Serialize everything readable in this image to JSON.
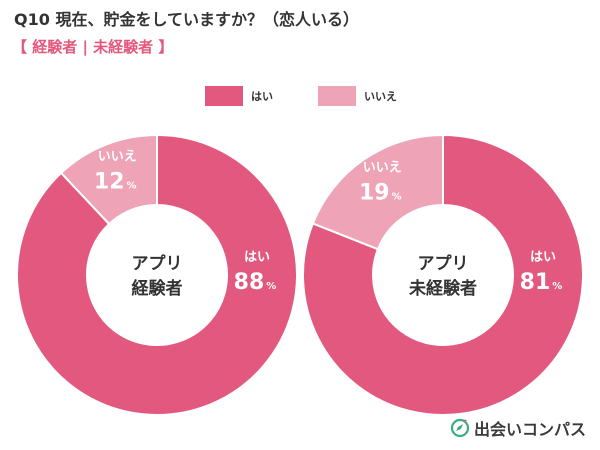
{
  "header": {
    "title": "Q10 現在、貯金をしていますか？（恋人いる）",
    "subtitle": "【 経験者 | 未経験者 】"
  },
  "legend": [
    {
      "label": "はい",
      "color": "#e2587e"
    },
    {
      "label": "いいえ",
      "color": "#eea3b6"
    }
  ],
  "colors": {
    "yes": "#e2587e",
    "no": "#eea3b6",
    "yes_label": "#ffffff",
    "no_label": "#ffffff"
  },
  "brand": {
    "name": "出会いコンパス",
    "icon": "compass-icon"
  },
  "chart_data": [
    {
      "type": "pie",
      "center_label": [
        "アプリ",
        "経験者"
      ],
      "slices": [
        {
          "label": "はい",
          "value": 88,
          "unit": "%"
        },
        {
          "label": "いいえ",
          "value": 12,
          "unit": "%"
        }
      ]
    },
    {
      "type": "pie",
      "center_label": [
        "アプリ",
        "未経験者"
      ],
      "slices": [
        {
          "label": "はい",
          "value": 81,
          "unit": "%"
        },
        {
          "label": "いいえ",
          "value": 19,
          "unit": "%"
        }
      ]
    }
  ]
}
